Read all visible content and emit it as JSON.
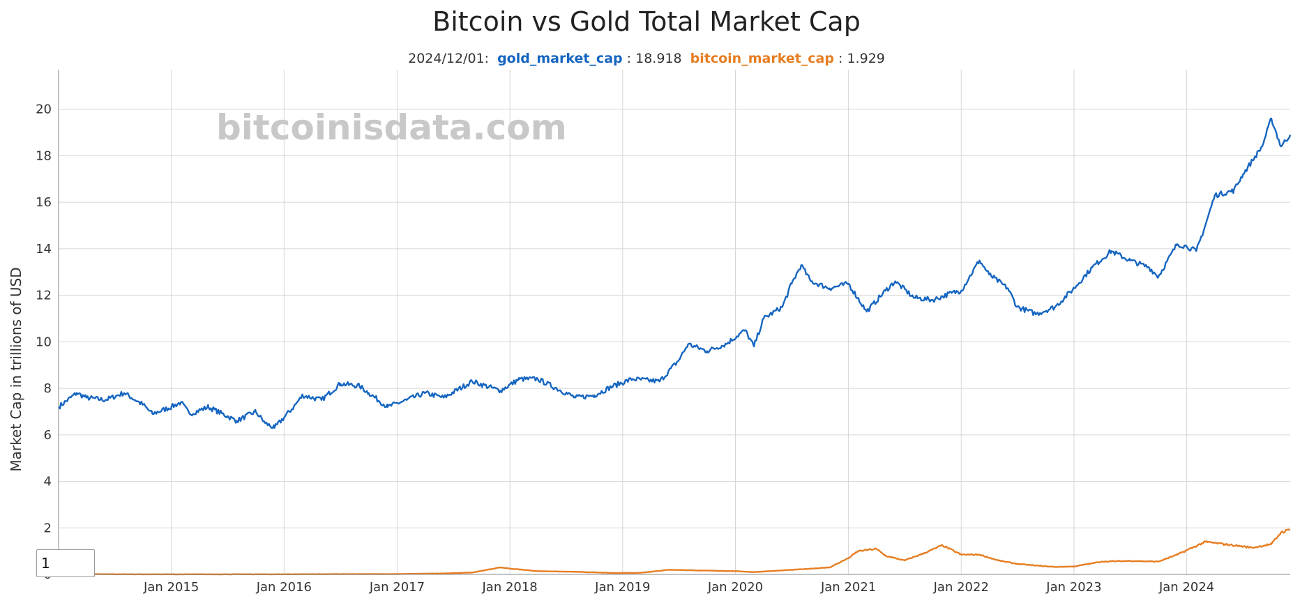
{
  "colors": {
    "gold": "#1565c0",
    "bitcoin": "#e67e22",
    "grid": "#d6d6d6",
    "background": "#ffffff"
  },
  "header": {
    "title": "Bitcoin vs Gold Total Market Cap",
    "legend_date": "2024/12/01:",
    "gold_key": "gold_market_cap",
    "gold_value": ": 18.918",
    "bitcoin_key": "bitcoin_market_cap",
    "bitcoin_value": ": 1.929"
  },
  "watermark": "bitcoinisdata.com",
  "controls": {
    "roll_period_value": "1"
  },
  "chart_data": {
    "type": "line",
    "title": "Bitcoin vs Gold Total Market Cap",
    "ylabel": "Market Cap in trillions of USD",
    "xlabel": "",
    "xlim": [
      "2014-01-01",
      "2024-12-01"
    ],
    "ylim": [
      0,
      21.7
    ],
    "y_ticks": [
      0,
      2,
      4,
      6,
      8,
      10,
      12,
      14,
      16,
      18,
      20
    ],
    "x_ticks": [
      {
        "date": "2015-01-01",
        "label": "Jan 2015"
      },
      {
        "date": "2016-01-01",
        "label": "Jan 2016"
      },
      {
        "date": "2017-01-01",
        "label": "Jan 2017"
      },
      {
        "date": "2018-01-01",
        "label": "Jan 2018"
      },
      {
        "date": "2019-01-01",
        "label": "Jan 2019"
      },
      {
        "date": "2020-01-01",
        "label": "Jan 2020"
      },
      {
        "date": "2021-01-01",
        "label": "Jan 2021"
      },
      {
        "date": "2022-01-01",
        "label": "Jan 2022"
      },
      {
        "date": "2023-01-01",
        "label": "Jan 2023"
      },
      {
        "date": "2024-01-01",
        "label": "Jan 2024"
      }
    ],
    "grid": true,
    "legend": "top",
    "series": [
      {
        "name": "gold_market_cap",
        "color": "#1565c0",
        "points": [
          [
            "2014-01-01",
            7.2
          ],
          [
            "2014-03-01",
            7.8
          ],
          [
            "2014-04-01",
            7.6
          ],
          [
            "2014-06-01",
            7.5
          ],
          [
            "2014-08-01",
            7.8
          ],
          [
            "2014-10-01",
            7.3
          ],
          [
            "2014-11-01",
            6.9
          ],
          [
            "2015-01-01",
            7.2
          ],
          [
            "2015-02-01",
            7.4
          ],
          [
            "2015-03-01",
            6.9
          ],
          [
            "2015-05-01",
            7.2
          ],
          [
            "2015-07-01",
            6.8
          ],
          [
            "2015-08-01",
            6.6
          ],
          [
            "2015-10-01",
            7.0
          ],
          [
            "2015-11-01",
            6.5
          ],
          [
            "2015-12-01",
            6.3
          ],
          [
            "2016-02-01",
            7.2
          ],
          [
            "2016-03-01",
            7.7
          ],
          [
            "2016-05-01",
            7.5
          ],
          [
            "2016-07-01",
            8.2
          ],
          [
            "2016-09-01",
            8.1
          ],
          [
            "2016-10-01",
            7.8
          ],
          [
            "2016-12-01",
            7.2
          ],
          [
            "2017-02-01",
            7.5
          ],
          [
            "2017-04-01",
            7.8
          ],
          [
            "2017-06-01",
            7.6
          ],
          [
            "2017-09-01",
            8.3
          ],
          [
            "2017-12-01",
            7.9
          ],
          [
            "2018-02-01",
            8.4
          ],
          [
            "2018-04-01",
            8.4
          ],
          [
            "2018-06-01",
            8.0
          ],
          [
            "2018-08-01",
            7.6
          ],
          [
            "2018-10-01",
            7.7
          ],
          [
            "2018-12-01",
            8.1
          ],
          [
            "2019-02-01",
            8.4
          ],
          [
            "2019-05-01",
            8.3
          ],
          [
            "2019-07-01",
            9.2
          ],
          [
            "2019-08-01",
            9.9
          ],
          [
            "2019-10-01",
            9.6
          ],
          [
            "2019-12-01",
            9.9
          ],
          [
            "2020-02-01",
            10.5
          ],
          [
            "2020-03-01",
            9.8
          ],
          [
            "2020-04-01",
            11.0
          ],
          [
            "2020-06-01",
            11.5
          ],
          [
            "2020-07-01",
            12.5
          ],
          [
            "2020-08-01",
            13.3
          ],
          [
            "2020-09-01",
            12.6
          ],
          [
            "2020-11-01",
            12.3
          ],
          [
            "2021-01-01",
            12.5
          ],
          [
            "2021-03-01",
            11.3
          ],
          [
            "2021-05-01",
            12.2
          ],
          [
            "2021-06-01",
            12.6
          ],
          [
            "2021-08-01",
            11.9
          ],
          [
            "2021-10-01",
            11.8
          ],
          [
            "2021-12-01",
            12.1
          ],
          [
            "2022-01-01",
            12.2
          ],
          [
            "2022-03-01",
            13.5
          ],
          [
            "2022-04-01",
            12.9
          ],
          [
            "2022-06-01",
            12.3
          ],
          [
            "2022-07-01",
            11.5
          ],
          [
            "2022-09-01",
            11.2
          ],
          [
            "2022-11-01",
            11.5
          ],
          [
            "2023-01-01",
            12.3
          ],
          [
            "2023-03-01",
            13.2
          ],
          [
            "2023-05-01",
            13.9
          ],
          [
            "2023-07-01",
            13.5
          ],
          [
            "2023-09-01",
            13.2
          ],
          [
            "2023-10-01",
            12.8
          ],
          [
            "2023-12-01",
            14.2
          ],
          [
            "2024-01-01",
            14.1
          ],
          [
            "2024-02-01",
            13.9
          ],
          [
            "2024-03-01",
            15.0
          ],
          [
            "2024-04-01",
            16.3
          ],
          [
            "2024-06-01",
            16.5
          ],
          [
            "2024-07-01",
            17.2
          ],
          [
            "2024-08-01",
            17.8
          ],
          [
            "2024-09-01",
            18.4
          ],
          [
            "2024-10-01",
            19.6
          ],
          [
            "2024-11-01",
            18.4
          ],
          [
            "2024-12-01",
            18.9
          ]
        ]
      },
      {
        "name": "bitcoin_market_cap",
        "color": "#e67e22",
        "points": [
          [
            "2014-01-01",
            0.01
          ],
          [
            "2015-01-01",
            0.004
          ],
          [
            "2016-01-01",
            0.006
          ],
          [
            "2017-01-01",
            0.016
          ],
          [
            "2017-06-01",
            0.04
          ],
          [
            "2017-09-01",
            0.08
          ],
          [
            "2017-12-01",
            0.3
          ],
          [
            "2018-01-01",
            0.25
          ],
          [
            "2018-04-01",
            0.14
          ],
          [
            "2018-08-01",
            0.11
          ],
          [
            "2018-12-01",
            0.06
          ],
          [
            "2019-03-01",
            0.07
          ],
          [
            "2019-06-01",
            0.2
          ],
          [
            "2019-09-01",
            0.17
          ],
          [
            "2020-01-01",
            0.14
          ],
          [
            "2020-03-01",
            0.1
          ],
          [
            "2020-08-01",
            0.22
          ],
          [
            "2020-11-01",
            0.3
          ],
          [
            "2021-01-01",
            0.7
          ],
          [
            "2021-02-01",
            1.0
          ],
          [
            "2021-04-01",
            1.1
          ],
          [
            "2021-05-01",
            0.8
          ],
          [
            "2021-07-01",
            0.6
          ],
          [
            "2021-09-01",
            0.9
          ],
          [
            "2021-11-01",
            1.25
          ],
          [
            "2022-01-01",
            0.85
          ],
          [
            "2022-03-01",
            0.85
          ],
          [
            "2022-05-01",
            0.6
          ],
          [
            "2022-07-01",
            0.45
          ],
          [
            "2022-09-01",
            0.38
          ],
          [
            "2022-11-01",
            0.32
          ],
          [
            "2023-01-01",
            0.34
          ],
          [
            "2023-04-01",
            0.55
          ],
          [
            "2023-07-01",
            0.58
          ],
          [
            "2023-10-01",
            0.55
          ],
          [
            "2023-12-01",
            0.85
          ],
          [
            "2024-03-01",
            1.4
          ],
          [
            "2024-05-01",
            1.3
          ],
          [
            "2024-08-01",
            1.15
          ],
          [
            "2024-10-01",
            1.3
          ],
          [
            "2024-11-01",
            1.8
          ],
          [
            "2024-12-01",
            1.93
          ]
        ]
      }
    ]
  }
}
